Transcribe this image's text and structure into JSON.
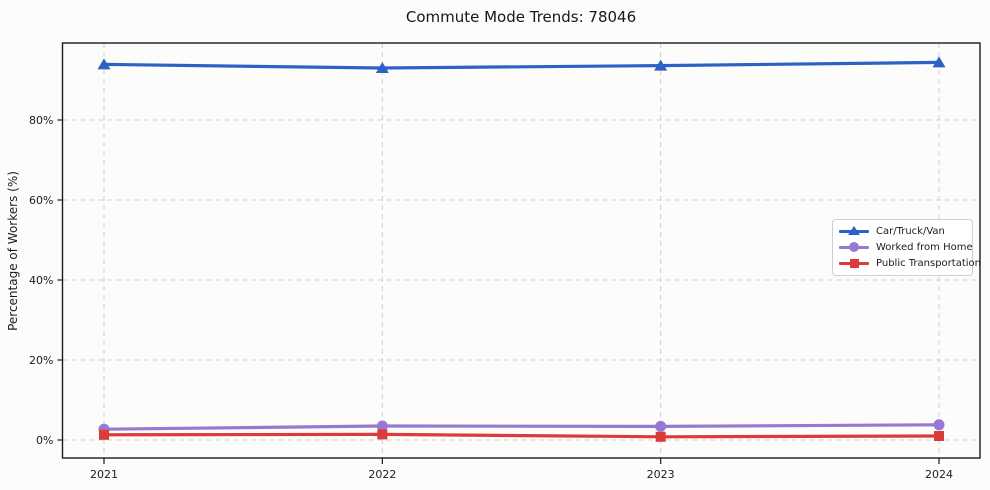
{
  "chart_data": {
    "type": "line",
    "title": "Commute Mode Trends: 78046",
    "xlabel": "",
    "ylabel": "Percentage of Workers (%)",
    "categories": [
      "2021",
      "2022",
      "2023",
      "2024"
    ],
    "yticks": [
      0,
      20,
      40,
      60,
      80
    ],
    "ytick_labels": [
      "0%",
      "20%",
      "40%",
      "60%",
      "80%"
    ],
    "ylim": [
      -4.5,
      99.3
    ],
    "grid": "dashed-both-axes",
    "legend_position": "center-right",
    "series": [
      {
        "name": "Car/Truck/Van",
        "marker": "triangle",
        "color": "#2c61c6",
        "values": [
          93.9,
          93.0,
          93.6,
          94.4
        ]
      },
      {
        "name": "Worked from Home",
        "marker": "circle",
        "color": "#9778d2",
        "values": [
          2.7,
          3.5,
          3.4,
          3.8
        ]
      },
      {
        "name": "Public Transportation",
        "marker": "square",
        "color": "#dc3b3b",
        "values": [
          1.3,
          1.4,
          0.8,
          1.0
        ]
      }
    ],
    "colors": {
      "grid": "#cfcfcf",
      "spine": "#1a1a1a",
      "tick_text": "#1c1c1c"
    }
  }
}
